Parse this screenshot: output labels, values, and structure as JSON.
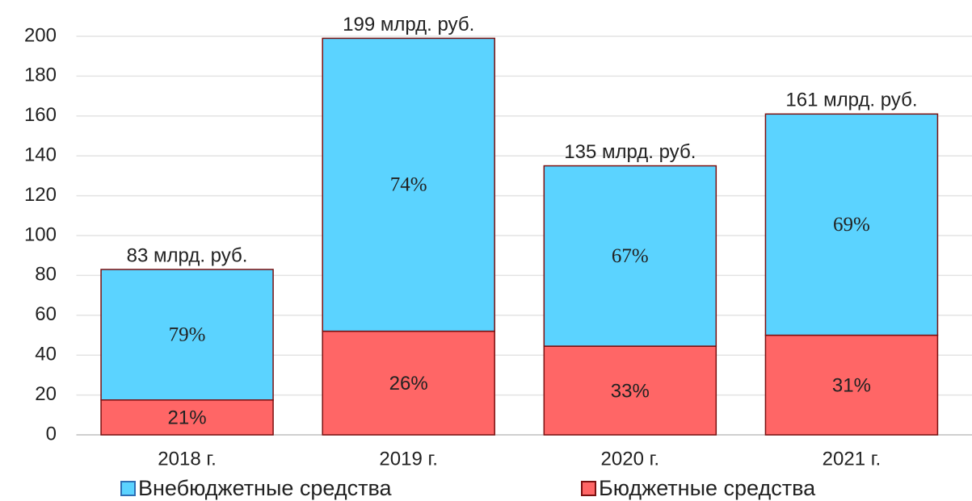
{
  "chart_data": {
    "type": "bar",
    "stacked": true,
    "categories": [
      "2018 г.",
      "2019 г.",
      "2020 г.",
      "2021 г."
    ],
    "series": [
      {
        "name": "Внебюджетные средства",
        "color": "#5bd3ff",
        "values": [
          65.5,
          147,
          90.5,
          111
        ],
        "value_labels": [
          "79%",
          "74%",
          "67%",
          "69%"
        ]
      },
      {
        "name": "Бюджетные средства",
        "color": "#ff6666",
        "values": [
          17.5,
          52,
          44.5,
          50
        ],
        "value_labels": [
          "21%",
          "26%",
          "33%",
          "31%"
        ]
      }
    ],
    "totals": [
      83,
      199,
      135,
      161
    ],
    "total_labels": [
      "83 млрд. руб.",
      "199 млрд. руб.",
      "135 млрд. руб.",
      "161 млрд. руб."
    ],
    "ylim": [
      0,
      200
    ],
    "yticks": [
      0,
      20,
      40,
      60,
      80,
      100,
      120,
      140,
      160,
      180,
      200
    ],
    "grid": true,
    "legend": "bottom"
  }
}
